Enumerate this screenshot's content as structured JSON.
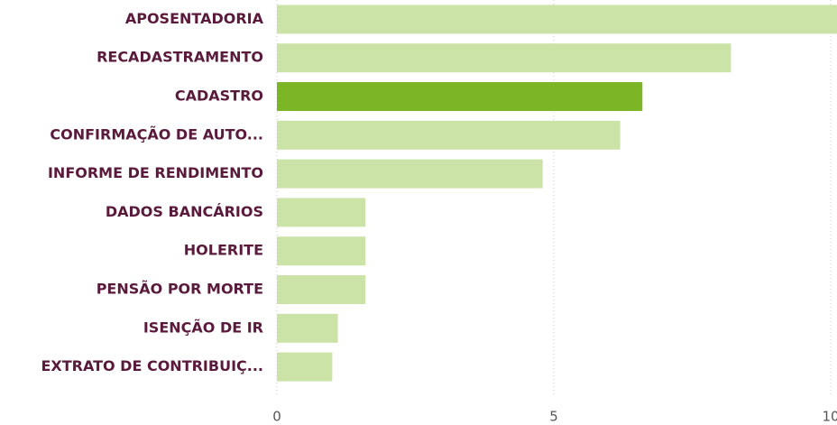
{
  "chart_data": {
    "type": "barh",
    "categories": [
      "APOSENTADORIA",
      "RECADASTRAMENTO",
      "CADASTRO",
      "CONFIRMAÇÃO DE AUTO...",
      "INFORME DE RENDIMENTO",
      "DADOS BANCÁRIOS",
      "HOLERITE",
      "PENSÃO POR MORTE",
      "ISENÇÃO DE IR",
      "EXTRATO DE CONTRIBUIÇ..."
    ],
    "values": [
      10.2,
      8.2,
      6.6,
      6.2,
      4.8,
      1.6,
      1.6,
      1.6,
      1.1,
      1.0
    ],
    "colors": [
      "#cce3a8",
      "#cce3a8",
      "#7cb526",
      "#cce3a8",
      "#cce3a8",
      "#cce3a8",
      "#cce3a8",
      "#cce3a8",
      "#cce3a8",
      "#cce3a8"
    ],
    "xlim": [
      0,
      10
    ],
    "xticks": [
      0,
      5,
      10
    ],
    "grid": true
  }
}
